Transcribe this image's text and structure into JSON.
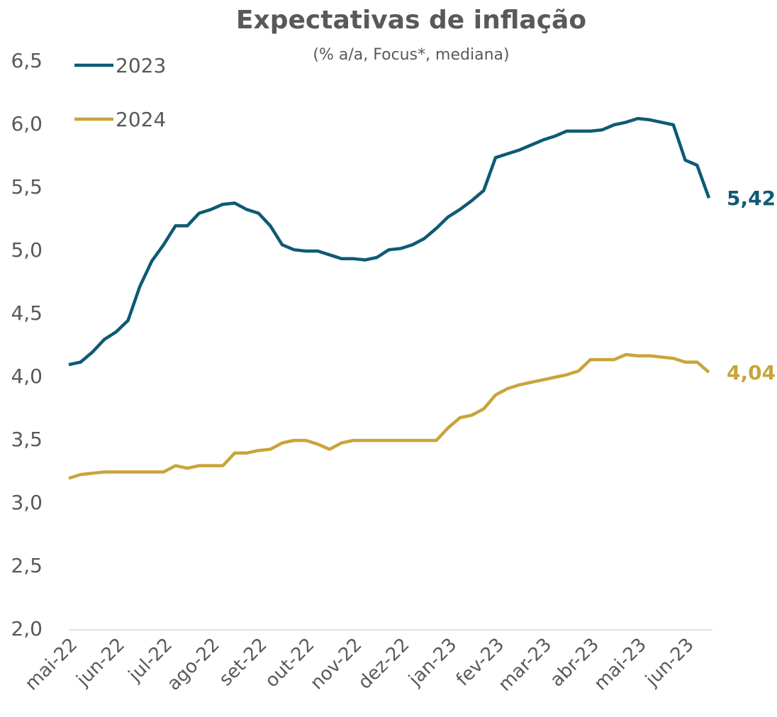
{
  "chart_data": {
    "type": "line",
    "title": "Expectativas de inflação",
    "subtitle": "(% a/a, Focus*, mediana)",
    "categories": [
      "mai-22",
      null,
      null,
      null,
      "jun-22",
      null,
      null,
      null,
      "jul-22",
      null,
      null,
      null,
      "ago-22",
      null,
      null,
      null,
      "set-22",
      null,
      null,
      null,
      "out-22",
      null,
      null,
      null,
      "nov-22",
      null,
      null,
      null,
      "dez-22",
      null,
      null,
      null,
      "jan-23",
      null,
      null,
      null,
      "fev-23",
      null,
      null,
      null,
      "mar-23",
      null,
      null,
      null,
      "abr-23",
      null,
      null,
      null,
      "mai-23",
      null,
      null,
      null,
      "jun-23",
      null,
      null
    ],
    "series": [
      {
        "name": "2023",
        "color": "#0e5a73",
        "values": [
          4.1,
          4.12,
          4.2,
          4.3,
          4.36,
          4.45,
          4.72,
          4.92,
          5.05,
          5.2,
          5.2,
          5.3,
          5.33,
          5.37,
          5.38,
          5.33,
          5.3,
          5.2,
          5.05,
          5.01,
          5.0,
          5.0,
          4.97,
          4.94,
          4.94,
          4.93,
          4.95,
          5.01,
          5.02,
          5.05,
          5.1,
          5.18,
          5.27,
          5.33,
          5.4,
          5.48,
          5.74,
          5.77,
          5.8,
          5.84,
          5.88,
          5.91,
          5.95,
          5.95,
          5.95,
          5.96,
          6.0,
          6.02,
          6.05,
          6.04,
          6.02,
          6.0,
          5.72,
          5.68,
          5.42
        ],
        "value_labels": [
          null,
          null,
          null,
          null,
          null,
          null,
          null,
          null,
          null,
          null,
          null,
          null,
          null,
          null,
          null,
          null,
          null,
          null,
          null,
          null,
          null,
          null,
          null,
          null,
          null,
          null,
          null,
          null,
          null,
          null,
          null,
          null,
          null,
          null,
          null,
          null,
          null,
          null,
          null,
          null,
          null,
          null,
          null,
          null,
          null,
          null,
          null,
          null,
          null,
          null,
          null,
          null,
          null,
          null,
          "5,42"
        ]
      },
      {
        "name": "2024",
        "color": "#c9a43a",
        "values": [
          3.2,
          3.23,
          3.24,
          3.25,
          3.25,
          3.25,
          3.25,
          3.25,
          3.25,
          3.3,
          3.28,
          3.3,
          3.3,
          3.3,
          3.4,
          3.4,
          3.42,
          3.43,
          3.48,
          3.5,
          3.5,
          3.47,
          3.43,
          3.48,
          3.5,
          3.5,
          3.5,
          3.5,
          3.5,
          3.5,
          3.5,
          3.5,
          3.6,
          3.68,
          3.7,
          3.75,
          3.86,
          3.91,
          3.94,
          3.96,
          3.98,
          4.0,
          4.02,
          4.05,
          4.14,
          4.14,
          4.14,
          4.18,
          4.17,
          4.17,
          4.16,
          4.15,
          4.12,
          4.12,
          4.04
        ],
        "value_labels": [
          null,
          null,
          null,
          null,
          null,
          null,
          null,
          null,
          null,
          null,
          null,
          null,
          null,
          null,
          null,
          null,
          null,
          null,
          null,
          null,
          null,
          null,
          null,
          null,
          null,
          null,
          null,
          null,
          null,
          null,
          null,
          null,
          null,
          null,
          null,
          null,
          null,
          null,
          null,
          null,
          null,
          null,
          null,
          null,
          null,
          null,
          null,
          null,
          null,
          null,
          null,
          null,
          null,
          null,
          "4,04"
        ]
      }
    ],
    "ylim": [
      2.0,
      6.5
    ],
    "yticks": [
      {
        "value": 2.0,
        "label": "2,0"
      },
      {
        "value": 2.5,
        "label": "2,5"
      },
      {
        "value": 3.0,
        "label": "3,0"
      },
      {
        "value": 3.5,
        "label": "3,5"
      },
      {
        "value": 4.0,
        "label": "4,0"
      },
      {
        "value": 4.5,
        "label": "4,5"
      },
      {
        "value": 5.0,
        "label": "5,0"
      },
      {
        "value": 5.5,
        "label": "5,5"
      },
      {
        "value": 6.0,
        "label": "6,0"
      },
      {
        "value": 6.5,
        "label": "6,5"
      }
    ],
    "grid": false,
    "legend": "upper-left"
  }
}
